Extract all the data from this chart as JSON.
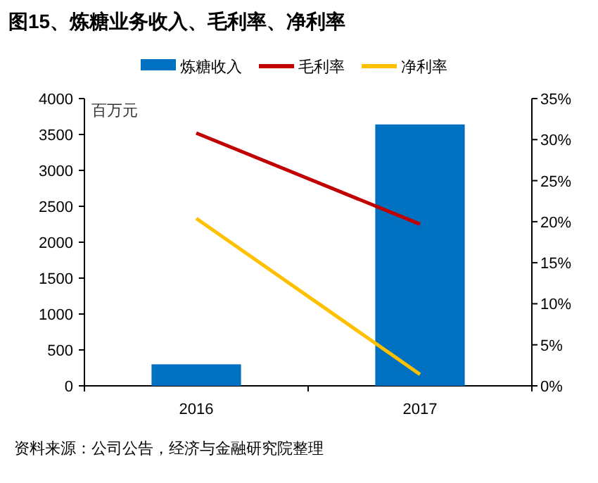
{
  "chart_data": {
    "type": "bar",
    "title": "图15、炼糖业务收入、毛利率、净利率",
    "ylabel": "百万元",
    "categories": [
      "2016",
      "2017"
    ],
    "series": [
      {
        "name": "炼糖收入",
        "color": "#0070c0",
        "values": [
          300,
          3640
        ]
      },
      {
        "name": "毛利率",
        "type": "line",
        "axis": "y2",
        "color": "#c00000",
        "values": [
          30.8,
          19.7
        ]
      },
      {
        "name": "净利率",
        "type": "line",
        "axis": "y2",
        "color": "#ffc000",
        "values": [
          20.4,
          1.4
        ]
      }
    ],
    "ylim": [
      0,
      4000
    ],
    "yticks": [
      0,
      500,
      1000,
      1500,
      2000,
      2500,
      3000,
      3500,
      4000
    ],
    "y2lim": [
      0,
      35
    ],
    "y2ticks": [
      {
        "value": 0,
        "label": "0%"
      },
      {
        "value": 5,
        "label": "5%"
      },
      {
        "value": 10,
        "label": "10%"
      },
      {
        "value": 15,
        "label": "15%"
      },
      {
        "value": 20,
        "label": "20%"
      },
      {
        "value": 25,
        "label": "25%"
      },
      {
        "value": 30,
        "label": "30%"
      },
      {
        "value": 35,
        "label": "35%"
      }
    ],
    "legend": "top",
    "grid": false,
    "annotations": [
      "资料来源：公司公告，经济与金融研究院整理"
    ]
  }
}
